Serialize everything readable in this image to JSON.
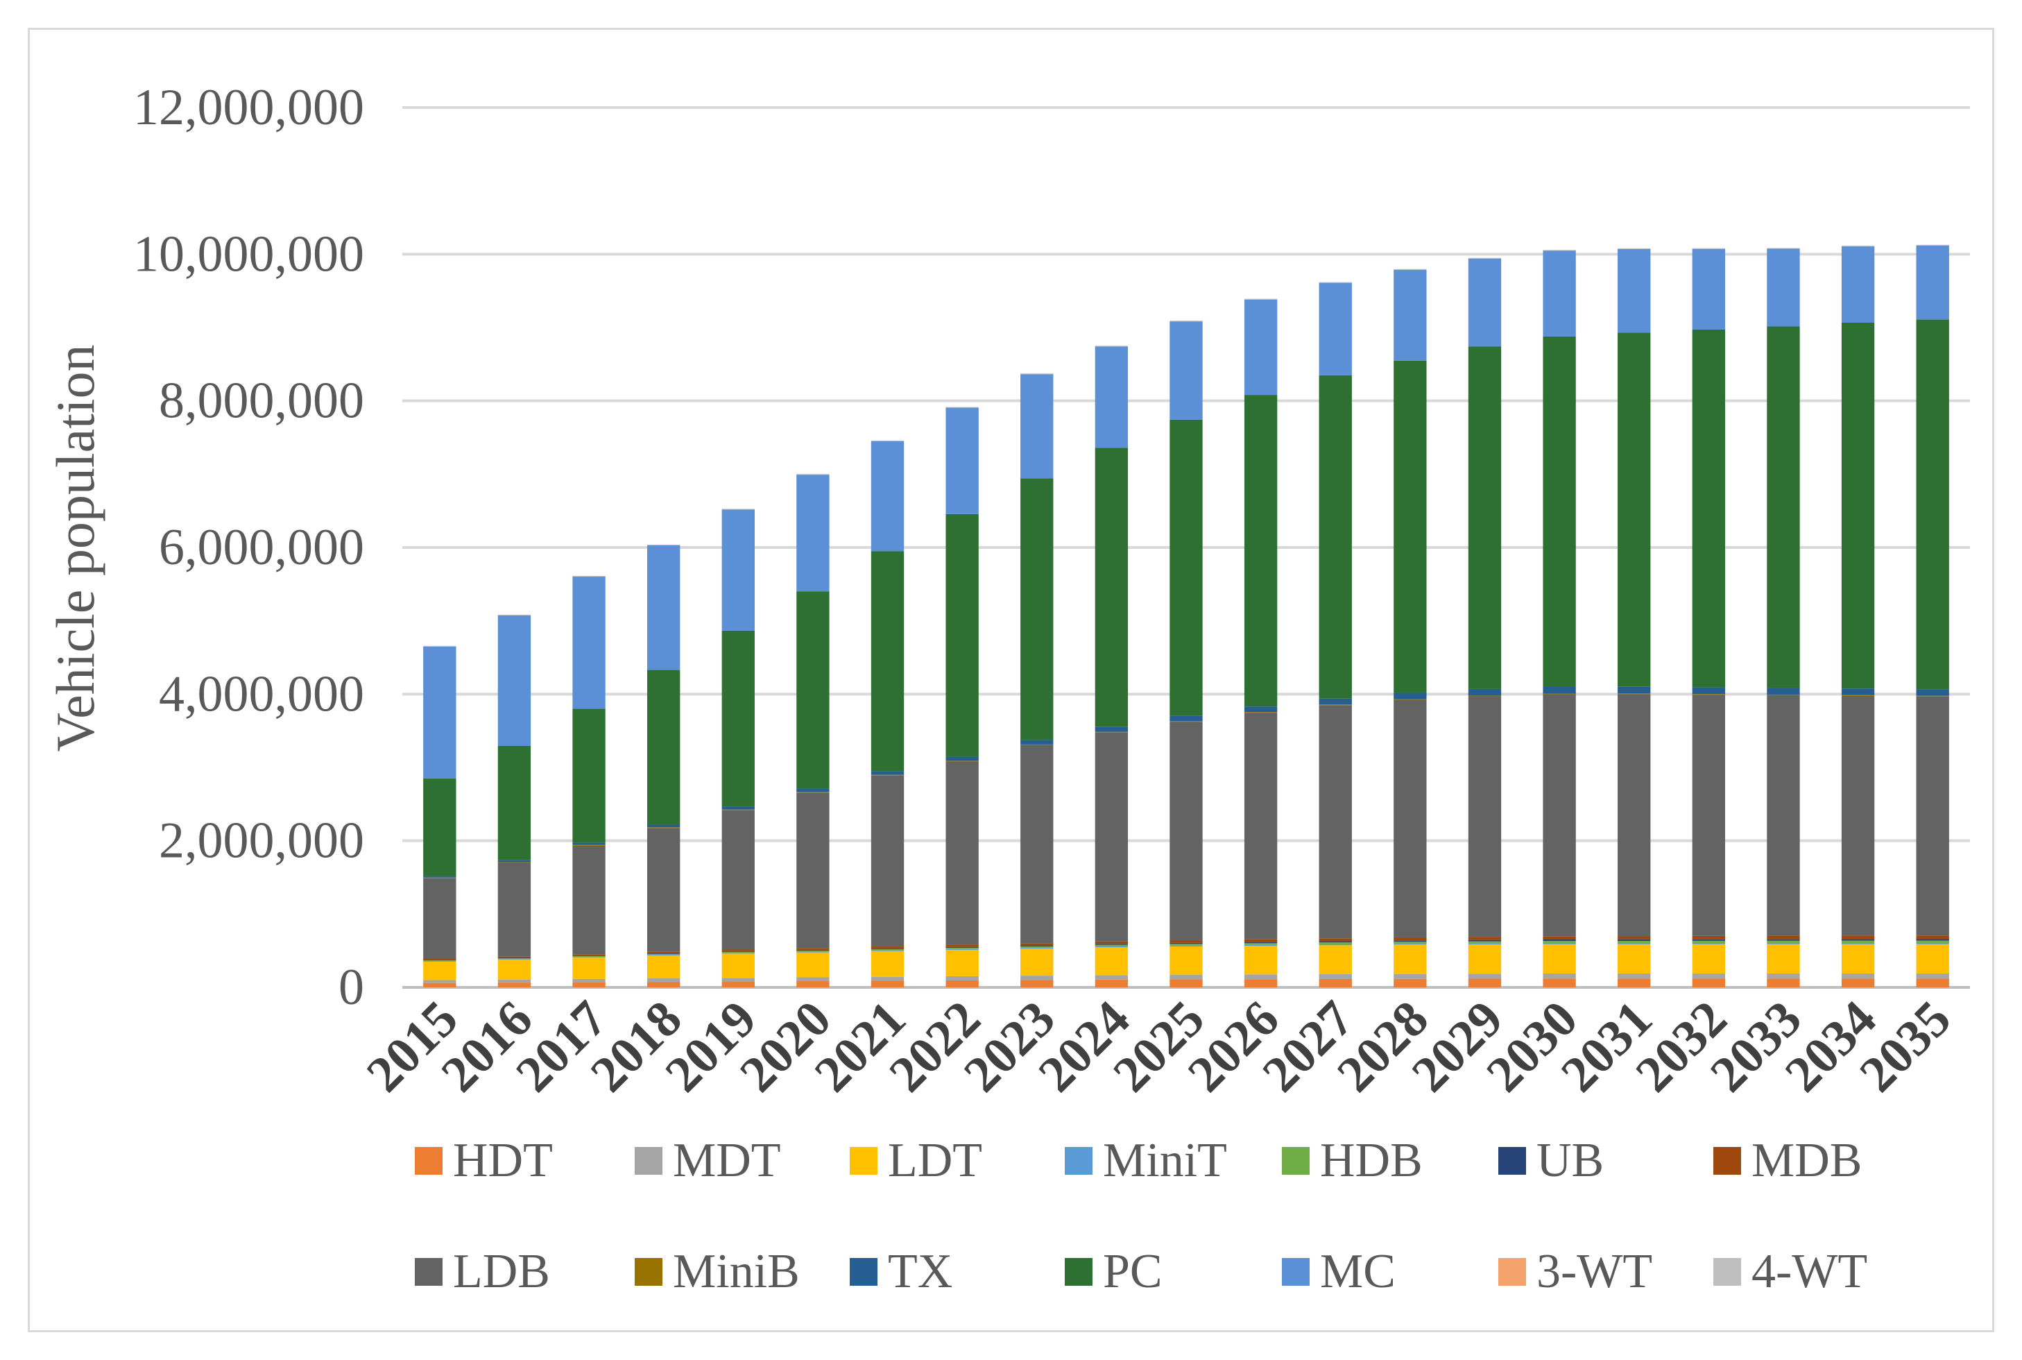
{
  "chart_data": {
    "type": "bar",
    "stacked": true,
    "title": "",
    "xlabel": "",
    "ylabel": "Vehicle population",
    "ylim": [
      0,
      12000000
    ],
    "yticks": [
      0,
      2000000,
      4000000,
      6000000,
      8000000,
      10000000,
      12000000
    ],
    "ytick_labels": [
      "0",
      "2,000,000",
      "4,000,000",
      "6,000,000",
      "8,000,000",
      "10,000,000",
      "12,000,000"
    ],
    "grid": true,
    "legend_position": "bottom",
    "categories": [
      "2015",
      "2016",
      "2017",
      "2018",
      "2019",
      "2020",
      "2021",
      "2022",
      "2023",
      "2024",
      "2025",
      "2026",
      "2027",
      "2028",
      "2029",
      "2030",
      "2031",
      "2032",
      "2033",
      "2034",
      "2035"
    ],
    "series": [
      {
        "name": "HDT",
        "color": "#ed7d31",
        "values": [
          60000,
          65000,
          70000,
          75000,
          80000,
          85000,
          90000,
          95000,
          100000,
          105000,
          110000,
          112000,
          114000,
          116000,
          118000,
          120000,
          120000,
          120000,
          120000,
          120000,
          120000
        ]
      },
      {
        "name": "MDT",
        "color": "#a5a5a5",
        "values": [
          40000,
          42000,
          45000,
          48000,
          50000,
          52000,
          55000,
          57000,
          60000,
          62000,
          64000,
          65000,
          66000,
          67000,
          68000,
          69000,
          69000,
          69000,
          69000,
          69000,
          69000
        ]
      },
      {
        "name": "LDT",
        "color": "#ffc000",
        "values": [
          250000,
          270000,
          290000,
          310000,
          330000,
          340000,
          350000,
          360000,
          370000,
          380000,
          385000,
          390000,
          395000,
          400000,
          400000,
          400000,
          400000,
          400000,
          400000,
          400000,
          400000
        ]
      },
      {
        "name": "MiniT",
        "color": "#5b9bd5",
        "values": [
          8000,
          8000,
          9000,
          9000,
          10000,
          10000,
          10000,
          11000,
          11000,
          12000,
          12000,
          12000,
          12000,
          12000,
          12000,
          12000,
          12000,
          12000,
          12000,
          12000,
          12000
        ]
      },
      {
        "name": "HDB",
        "color": "#70ad47",
        "values": [
          10000,
          11000,
          12000,
          13000,
          14000,
          15000,
          16000,
          17000,
          18000,
          20000,
          22000,
          24000,
          26000,
          28000,
          30000,
          32000,
          33000,
          34000,
          35000,
          36000,
          37000
        ]
      },
      {
        "name": "UB",
        "color": "#264478",
        "values": [
          5000,
          6000,
          7000,
          8000,
          9000,
          10000,
          11000,
          12000,
          13000,
          14000,
          15000,
          16000,
          17000,
          18000,
          19000,
          20000,
          20000,
          20000,
          20000,
          20000,
          20000
        ]
      },
      {
        "name": "MDB",
        "color": "#9e480e",
        "values": [
          15000,
          17000,
          19000,
          21000,
          23000,
          25000,
          27000,
          29000,
          31000,
          33000,
          35000,
          37000,
          39000,
          41000,
          43000,
          45000,
          46000,
          47000,
          48000,
          49000,
          50000
        ]
      },
      {
        "name": "LDB",
        "color": "#636363",
        "values": [
          1100000,
          1280000,
          1480000,
          1690000,
          1900000,
          2120000,
          2330000,
          2500000,
          2700000,
          2850000,
          2980000,
          3090000,
          3180000,
          3240000,
          3280000,
          3300000,
          3300000,
          3290000,
          3280000,
          3270000,
          3260000
        ]
      },
      {
        "name": "MiniB",
        "color": "#997300",
        "values": [
          10000,
          10000,
          10000,
          10000,
          10000,
          10000,
          10000,
          10000,
          10000,
          10000,
          10000,
          10000,
          10000,
          10000,
          10000,
          10000,
          10000,
          10000,
          10000,
          10000,
          10000
        ]
      },
      {
        "name": "TX",
        "color": "#255e91",
        "values": [
          20000,
          25000,
          30000,
          35000,
          40000,
          45000,
          50000,
          55000,
          60000,
          65000,
          70000,
          75000,
          80000,
          85000,
          90000,
          90000,
          90000,
          90000,
          90000,
          90000,
          90000
        ]
      },
      {
        "name": "PC",
        "color": "#2e7032",
        "values": [
          1330000,
          1560000,
          1830000,
          2110000,
          2400000,
          2690000,
          3000000,
          3310000,
          3570000,
          3810000,
          4040000,
          4250000,
          4410000,
          4530000,
          4670000,
          4780000,
          4830000,
          4880000,
          4930000,
          4990000,
          5040000
        ]
      },
      {
        "name": "MC",
        "color": "#5b8fd6",
        "values": [
          1800000,
          1780000,
          1800000,
          1700000,
          1650000,
          1590000,
          1500000,
          1450000,
          1420000,
          1380000,
          1340000,
          1300000,
          1260000,
          1240000,
          1200000,
          1170000,
          1140000,
          1100000,
          1060000,
          1040000,
          1010000
        ]
      },
      {
        "name": "3-WT",
        "color": "#f4a26b",
        "values": [
          0,
          0,
          0,
          0,
          0,
          0,
          0,
          0,
          0,
          0,
          0,
          0,
          0,
          0,
          0,
          0,
          0,
          0,
          0,
          0,
          0
        ]
      },
      {
        "name": "4-WT",
        "color": "#bfbfbf",
        "values": [
          10000,
          10000,
          10000,
          10000,
          10000,
          10000,
          10000,
          10000,
          10000,
          10000,
          10000,
          10000,
          10000,
          10000,
          10000,
          10000,
          10000,
          10000,
          10000,
          10000,
          10000
        ]
      }
    ]
  }
}
